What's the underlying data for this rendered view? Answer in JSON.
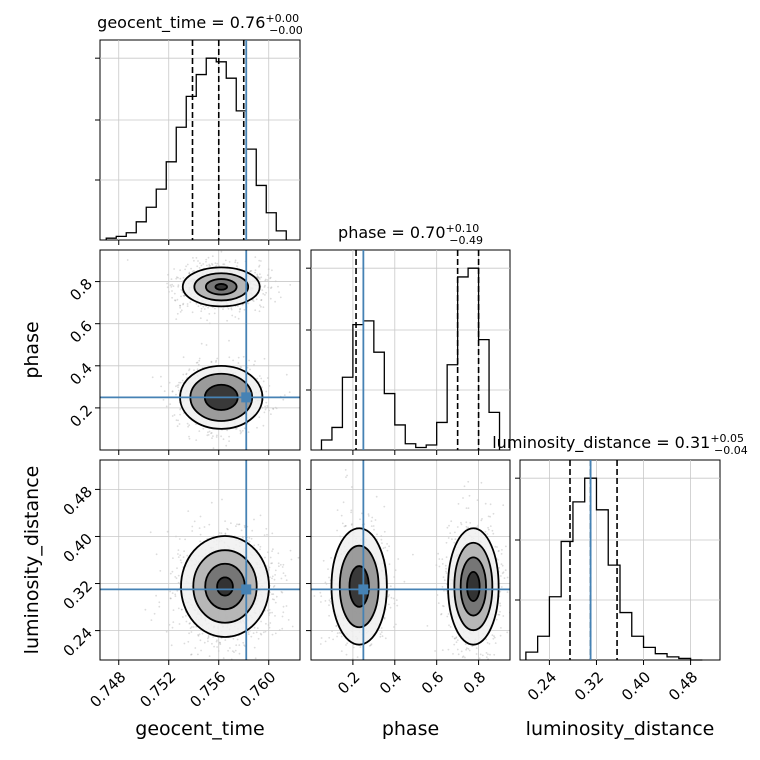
{
  "chart_data": {
    "type": "corner",
    "parameters": [
      "geocent_time",
      "phase",
      "luminosity_distance"
    ],
    "truths": {
      "geocent_time": 0.7582,
      "phase": 0.25,
      "luminosity_distance": 0.31
    },
    "colors": {
      "truth": "#4682b4",
      "hist": "#000000",
      "grid": "#c8c8c8",
      "samples": "#808080"
    },
    "grid": true,
    "titles": [
      {
        "param": "geocent_time",
        "text": "geocent_time = 0.76",
        "sup": "+0.00",
        "sub": "−0.00"
      },
      {
        "param": "phase",
        "text": "phase = 0.70",
        "sup": "+0.10",
        "sub": "−0.49"
      },
      {
        "param": "luminosity_distance",
        "text": "luminosity_distance = 0.31",
        "sup": "+0.05",
        "sub": "−0.04"
      }
    ],
    "axes": {
      "geocent_time": {
        "label": "geocent_time",
        "range": [
          0.7465,
          0.7625
        ],
        "ticks": [
          0.748,
          0.752,
          0.756,
          0.76
        ],
        "tick_labels": [
          "0.748",
          "0.752",
          "0.756",
          "0.760"
        ]
      },
      "phase": {
        "label": "phase",
        "range": [
          0.0,
          0.95
        ],
        "ticks": [
          0.2,
          0.4,
          0.6,
          0.8
        ],
        "tick_labels": [
          "0.2",
          "0.4",
          "0.6",
          "0.8"
        ]
      },
      "luminosity_distance": {
        "label": "luminosity_distance",
        "range": [
          0.19,
          0.53
        ],
        "ticks": [
          0.24,
          0.32,
          0.4,
          0.48
        ],
        "tick_labels": [
          "0.24",
          "0.32",
          "0.40",
          "0.48"
        ]
      }
    },
    "histograms": {
      "geocent_time": {
        "bin_edges": [
          0.747,
          0.7478,
          0.7486,
          0.7494,
          0.7502,
          0.751,
          0.7518,
          0.7526,
          0.7534,
          0.7542,
          0.755,
          0.7558,
          0.7566,
          0.7574,
          0.7582,
          0.759,
          0.7598,
          0.7606,
          0.7614
        ],
        "counts": [
          1,
          2,
          4,
          10,
          18,
          28,
          43,
          62,
          79,
          91,
          100,
          98,
          89,
          71,
          50,
          30,
          15,
          5
        ],
        "quantiles": [
          0.7539,
          0.756,
          0.758
        ]
      },
      "phase": {
        "bin_edges": [
          0.05,
          0.1,
          0.15,
          0.2,
          0.25,
          0.3,
          0.35,
          0.4,
          0.45,
          0.5,
          0.55,
          0.6,
          0.65,
          0.7,
          0.75,
          0.8,
          0.85,
          0.9
        ],
        "counts": [
          8,
          18,
          58,
          100,
          103,
          78,
          45,
          20,
          5,
          2,
          4,
          22,
          68,
          138,
          145,
          88,
          30
        ],
        "quantiles": [
          0.215,
          0.7,
          0.8
        ]
      },
      "luminosity_distance": {
        "bin_edges": [
          0.2,
          0.22,
          0.24,
          0.26,
          0.28,
          0.3,
          0.32,
          0.34,
          0.36,
          0.38,
          0.4,
          0.42,
          0.44,
          0.46,
          0.48,
          0.5
        ],
        "counts": [
          5,
          15,
          40,
          75,
          100,
          115,
          95,
          60,
          30,
          15,
          8,
          4,
          2,
          1,
          0
        ],
        "quantiles": [
          0.275,
          0.31,
          0.355
        ]
      }
    },
    "pairs": [
      {
        "x": "geocent_time",
        "y": "phase",
        "modes": [
          {
            "cx": 0.7562,
            "cy": 0.775,
            "sx": 0.0014,
            "sy": 0.042,
            "n": 1000,
            "levels": [
              1,
              0.7,
              0.4,
              0.15
            ]
          },
          {
            "cx": 0.7562,
            "cy": 0.25,
            "sx": 0.0015,
            "sy": 0.068,
            "n": 600,
            "levels": [
              1,
              0.75,
              0.4
            ]
          }
        ]
      },
      {
        "x": "geocent_time",
        "y": "luminosity_distance",
        "modes": [
          {
            "cx": 0.7565,
            "cy": 0.315,
            "sx": 0.0016,
            "sy": 0.039,
            "n": 1200,
            "levels": [
              1,
              0.72,
              0.45,
              0.18
            ]
          }
        ]
      },
      {
        "x": "phase",
        "y": "luminosity_distance",
        "modes": [
          {
            "cx": 0.23,
            "cy": 0.315,
            "sx": 0.06,
            "sy": 0.045,
            "n": 600,
            "levels": [
              1,
              0.7,
              0.35
            ]
          },
          {
            "cx": 0.775,
            "cy": 0.315,
            "sx": 0.055,
            "sy": 0.045,
            "n": 800,
            "levels": [
              1,
              0.75,
              0.5,
              0.25
            ]
          }
        ]
      }
    ]
  }
}
